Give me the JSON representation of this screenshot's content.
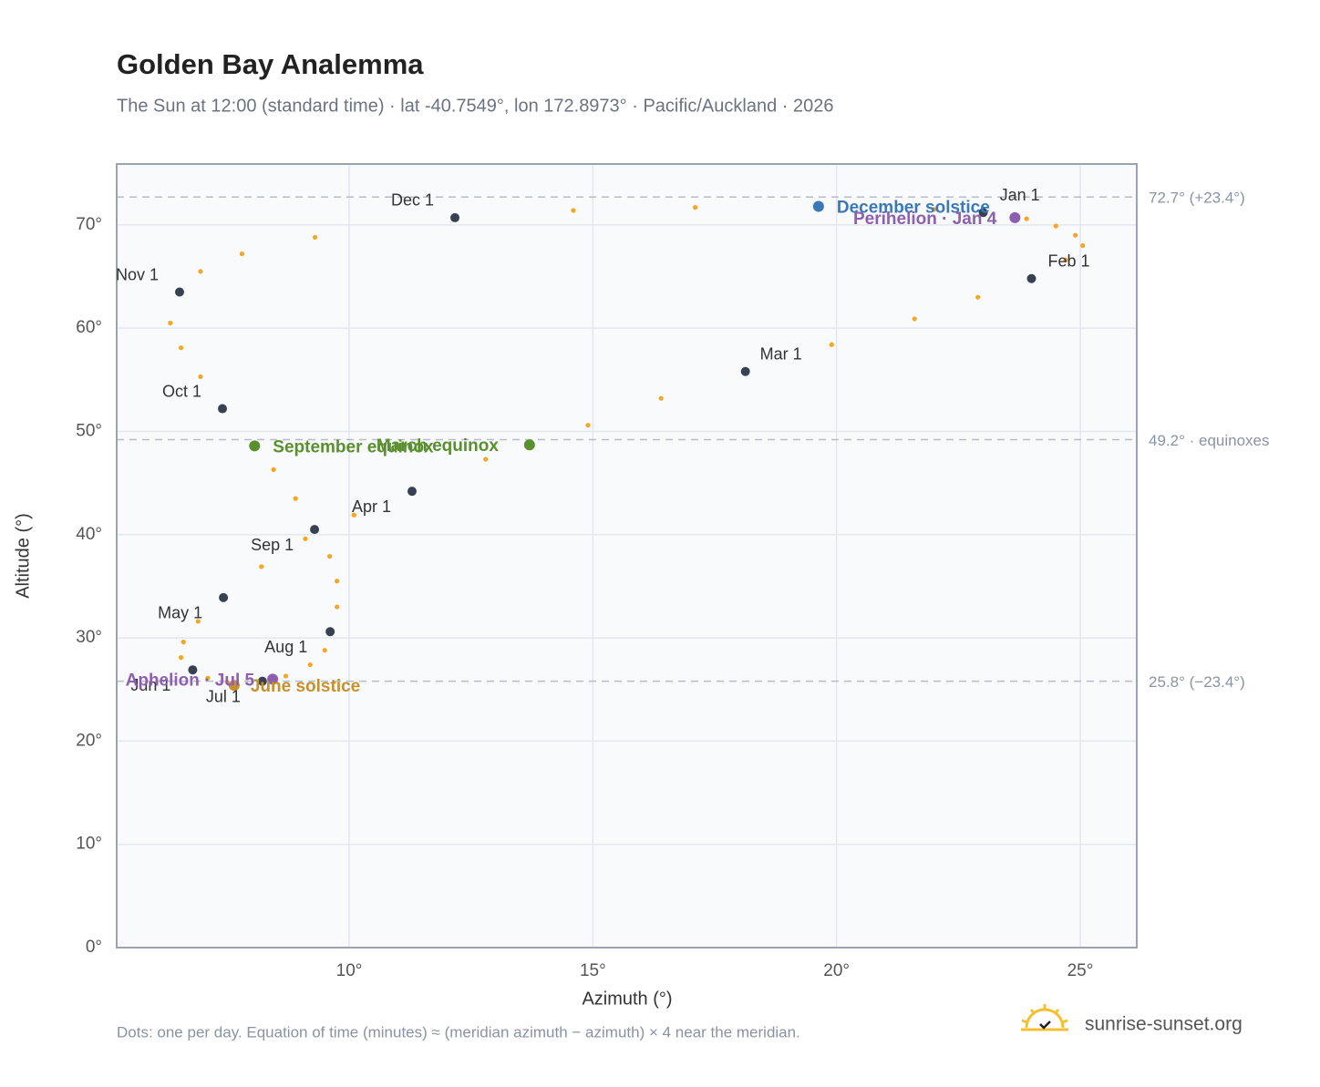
{
  "chart_data": {
    "type": "scatter",
    "title": "Golden Bay Analemma",
    "subtitle": "The Sun at 12:00 (standard time) · lat -40.7549°, lon 172.8973° · Pacific/Auckland · 2026",
    "x_label": "Azimuth (°)",
    "y_label": "Altitude (°)",
    "xlim": [
      5.23,
      26.16
    ],
    "ylim": [
      0,
      75.9
    ],
    "xticks": [
      {
        "value": 10,
        "label": "10°"
      },
      {
        "value": 15,
        "label": "15°"
      },
      {
        "value": 20,
        "label": "20°"
      },
      {
        "value": 25,
        "label": "25°"
      }
    ],
    "yticks": [
      {
        "value": 0,
        "label": "0°"
      },
      {
        "value": 10,
        "label": "10°"
      },
      {
        "value": 20,
        "label": "20°"
      },
      {
        "value": 30,
        "label": "30°"
      },
      {
        "value": 40,
        "label": "40°"
      },
      {
        "value": 50,
        "label": "50°"
      },
      {
        "value": 60,
        "label": "60°"
      },
      {
        "value": 70,
        "label": "70°"
      }
    ],
    "grid": true,
    "curve": {
      "color": "#f5a623",
      "x": [
        23.01,
        23.9,
        24.5,
        24.9,
        25.05,
        24.7,
        24.0,
        22.9,
        21.6,
        19.9,
        18.13,
        16.4,
        14.9,
        13.7,
        12.8,
        11.29,
        10.1,
        9.1,
        8.2,
        7.42,
        6.9,
        6.6,
        6.55,
        6.79,
        7.1,
        7.5,
        7.64,
        8.22,
        8.7,
        9.2,
        9.5,
        9.61,
        9.75,
        9.75,
        9.6,
        9.29,
        8.9,
        8.45,
        8.06,
        7.4,
        6.95,
        6.55,
        6.33,
        6.52,
        6.95,
        7.8,
        9.3,
        12.17,
        14.6,
        17.1,
        19.63,
        22.0
      ],
      "y": [
        71.2,
        70.6,
        69.9,
        69.0,
        68.0,
        66.6,
        64.8,
        63.0,
        60.9,
        58.4,
        55.8,
        53.2,
        50.6,
        48.7,
        47.3,
        44.2,
        41.9,
        39.6,
        36.9,
        33.9,
        31.6,
        29.6,
        28.1,
        26.9,
        26.1,
        25.7,
        25.4,
        25.8,
        26.3,
        27.4,
        28.8,
        30.6,
        33.0,
        35.5,
        37.9,
        40.5,
        43.5,
        46.3,
        48.6,
        52.2,
        55.3,
        58.1,
        60.5,
        63.5,
        65.5,
        67.2,
        68.8,
        70.7,
        71.4,
        71.7,
        71.8,
        71.5
      ]
    },
    "markers": {
      "color": "#374151",
      "labels": [
        "Jan 1",
        "Feb 1",
        "Mar 1",
        "Apr 1",
        "May 1",
        "Jun 1",
        "Jul 1",
        "Aug 1",
        "Sep 1",
        "Oct 1",
        "Nov 1",
        "Dec 1"
      ],
      "x": [
        23.01,
        24.0,
        18.13,
        11.29,
        7.42,
        6.79,
        8.22,
        9.61,
        9.29,
        7.4,
        6.52,
        12.17
      ],
      "y": [
        71.2,
        64.8,
        55.8,
        44.2,
        33.9,
        26.9,
        25.8,
        30.6,
        40.5,
        52.2,
        63.5,
        70.7
      ]
    },
    "events": [
      {
        "label": "December solstice",
        "x": 19.63,
        "y": 71.8,
        "color": "#3b78b8"
      },
      {
        "label": "Perihelion · Jan 4",
        "x": 23.66,
        "y": 70.7,
        "color": "#8e5fb0"
      },
      {
        "label": "March equinox",
        "x": 13.7,
        "y": 48.7,
        "color": "#5a8f2e"
      },
      {
        "label": "September equinox",
        "x": 8.06,
        "y": 48.6,
        "color": "#5a8f2e"
      },
      {
        "label": "June solstice",
        "x": 7.64,
        "y": 25.4,
        "color": "#c8902a"
      },
      {
        "label": "Aphelion · Jul 5",
        "x": 8.43,
        "y": 26.0,
        "color": "#8e5fb0"
      }
    ],
    "ref_lines": [
      {
        "value": 72.7,
        "label": "72.7° (+23.4°)"
      },
      {
        "value": 49.2,
        "label": "49.2° · equinoxes"
      },
      {
        "value": 25.8,
        "label": "25.8° (−23.4°)"
      }
    ],
    "footnote": "Dots: one per day. Equation of time (minutes) ≈ (meridian azimuth − azimuth) × 4 near the meridian.",
    "brand": "sunrise-sunset.org"
  }
}
